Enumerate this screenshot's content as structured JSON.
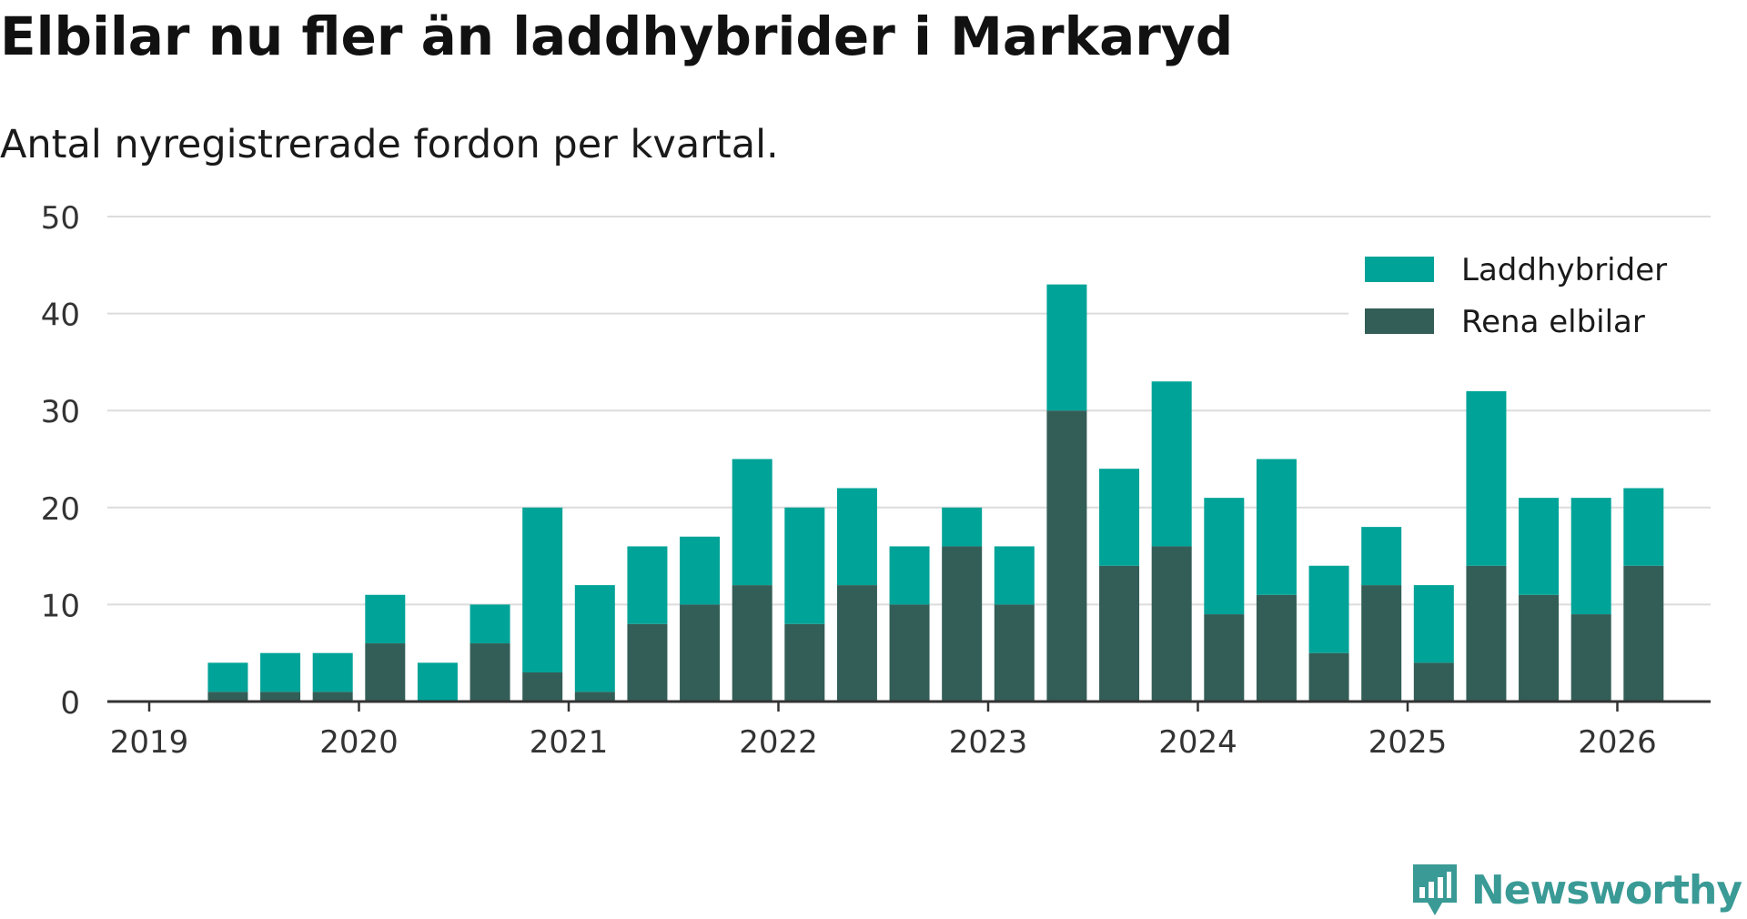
{
  "header": {
    "title": "Elbilar nu fler än laddhybrider i Markaryd",
    "subtitle": "Antal nyregistrerade fordon per kvartal."
  },
  "brand": {
    "name": "Newsworthy",
    "icon": "newsworthy-logo-icon",
    "color": "#3a9a95"
  },
  "colors": {
    "laddhybrider": "#00a398",
    "rena_elbilar": "#335e57",
    "gridline": "#dcdcdc",
    "axis": "#333333",
    "tick_label": "#333333"
  },
  "chart_data": {
    "type": "bar",
    "stacked": true,
    "title": "Elbilar nu fler än laddhybrider i Markaryd",
    "subtitle": "Antal nyregistrerade fordon per kvartal.",
    "xlabel": "",
    "ylabel": "",
    "ylim": [
      0,
      50
    ],
    "yticks": [
      0,
      10,
      20,
      30,
      40,
      50
    ],
    "grid": true,
    "legend_position": "top-right",
    "x_ticks": [
      "2019",
      "2020",
      "2021",
      "2022",
      "2023",
      "2024",
      "2025",
      "2026"
    ],
    "categories": [
      "2019 Q2",
      "2019 Q3",
      "2019 Q4",
      "2020 Q1",
      "2020 Q2",
      "2020 Q3",
      "2020 Q4",
      "2021 Q1",
      "2021 Q2",
      "2021 Q3",
      "2021 Q4",
      "2022 Q1",
      "2022 Q2",
      "2022 Q3",
      "2022 Q4",
      "2023 Q1",
      "2023 Q2",
      "2023 Q3",
      "2023 Q4",
      "2024 Q1",
      "2024 Q2",
      "2024 Q3",
      "2024 Q4",
      "2025 Q1",
      "2025 Q2",
      "2025 Q3",
      "2025 Q4",
      "2026 Q1"
    ],
    "series": [
      {
        "name": "Rena elbilar",
        "values": [
          1,
          1,
          1,
          6,
          0,
          6,
          3,
          1,
          8,
          10,
          12,
          8,
          12,
          10,
          16,
          10,
          30,
          14,
          16,
          9,
          11,
          5,
          12,
          4,
          14,
          11,
          9,
          14
        ]
      },
      {
        "name": "Laddhybrider",
        "values": [
          3,
          4,
          4,
          5,
          4,
          4,
          17,
          11,
          8,
          7,
          13,
          12,
          10,
          6,
          4,
          6,
          13,
          10,
          17,
          12,
          14,
          9,
          6,
          8,
          18,
          10,
          12,
          8
        ]
      }
    ],
    "legend": [
      "Laddhybrider",
      "Rena elbilar"
    ]
  }
}
